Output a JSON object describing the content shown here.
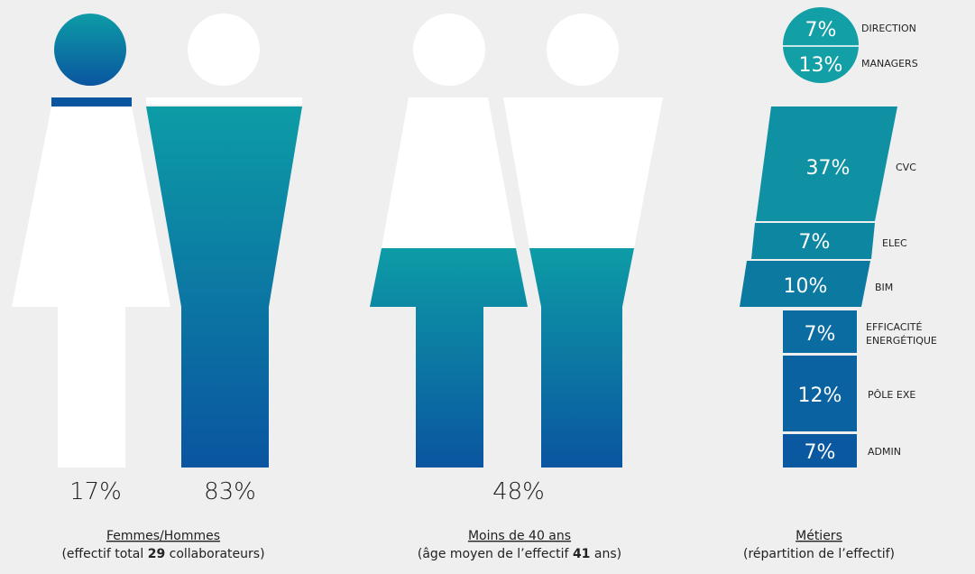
{
  "panels": [
    {
      "values": [
        "17%",
        "83%"
      ],
      "title": "Femmes/Hommes",
      "subtitle": [
        "(effectif total ",
        "29",
        " collaborateurs)"
      ]
    },
    {
      "values": [
        "48%"
      ],
      "title": "Moins de 40 ans",
      "subtitle": [
        "(âge moyen de l’effectif ",
        "41",
        " ans)"
      ]
    },
    {
      "title": "Métiers",
      "subtitle": "(répartition de l’effectif)",
      "segments": [
        {
          "value": "7%",
          "label": [
            "DIRECTION"
          ]
        },
        {
          "value": "13%",
          "label": [
            "MANAGERS"
          ]
        },
        {
          "value": "37%",
          "label": [
            "CVC"
          ]
        },
        {
          "value": "7%",
          "label": [
            "ELEC"
          ]
        },
        {
          "value": "10%",
          "label": [
            "BIM"
          ]
        },
        {
          "value": "7%",
          "label": [
            "EFFICACITÉ",
            "ENERGÉTIQUE"
          ]
        },
        {
          "value": "12%",
          "label": [
            "PÔLE EXE"
          ]
        },
        {
          "value": "7%",
          "label": [
            "ADMIN"
          ]
        }
      ]
    }
  ]
}
